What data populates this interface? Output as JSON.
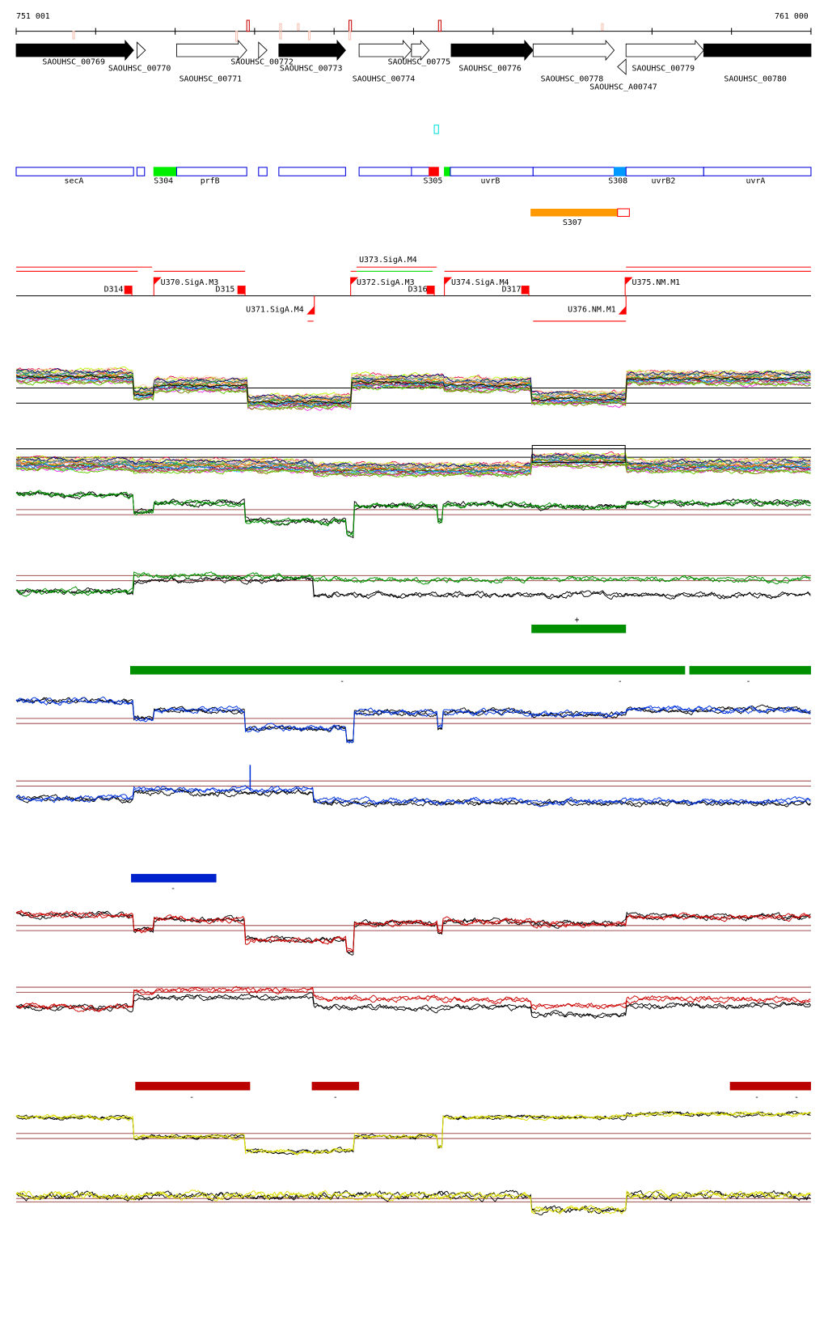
{
  "axis": {
    "start_label": "751 001",
    "end_label": "761 000"
  },
  "genes": [
    {
      "label": "SAOUHSC_00769",
      "strand": "+",
      "fill": "#000000"
    },
    {
      "label": "SAOUHSC_00770",
      "strand": "+",
      "fill": "#ffffff"
    },
    {
      "label": "SAOUHSC_00771",
      "strand": "+",
      "fill": "#ffffff"
    },
    {
      "label": "SAOUHSC_00772",
      "strand": "+",
      "fill": "#ffffff"
    },
    {
      "label": "SAOUHSC_00773",
      "strand": "+",
      "fill": "#000000"
    },
    {
      "label": "SAOUHSC_00774",
      "strand": "+",
      "fill": "#ffffff"
    },
    {
      "label": "SAOUHSC_00775",
      "strand": "+",
      "fill": "#ffffff"
    },
    {
      "label": "SAOUHSC_00776",
      "strand": "+",
      "fill": "#000000"
    },
    {
      "label": "SAOUHSC_00778",
      "strand": "+",
      "fill": "#ffffff"
    },
    {
      "label": "SAOUHSC_A00747",
      "strand": "-",
      "fill": "#ffffff"
    },
    {
      "label": "SAOUHSC_00779",
      "strand": "+",
      "fill": "#ffffff"
    },
    {
      "label": "SAOUHSC_00780",
      "strand": "+",
      "fill": "#000000"
    }
  ],
  "annotations": [
    {
      "label": "secA",
      "color": "#ffffff"
    },
    {
      "label": "",
      "color": "#ffffff"
    },
    {
      "label": "S304",
      "color": "#00ee00"
    },
    {
      "label": "prfB",
      "color": "#ffffff"
    },
    {
      "label": "",
      "color": "#ffffff"
    },
    {
      "label": "",
      "color": "#ffffff"
    },
    {
      "label": "",
      "color": "#ffffff"
    },
    {
      "label": "S305",
      "color": "#ff0000"
    },
    {
      "label": "",
      "color": "#00ee00"
    },
    {
      "label": "uvrB",
      "color": "#ffffff"
    },
    {
      "label": "",
      "color": "#ffffff"
    },
    {
      "label": "S308",
      "color": "#0099ff"
    },
    {
      "label": "uvrB2",
      "color": "#ffffff"
    },
    {
      "label": "uvrA",
      "color": "#ffffff"
    }
  ],
  "segment_s307": {
    "label": "S307",
    "color": "#ff9900"
  },
  "promoters": [
    {
      "label": "D314"
    },
    {
      "label": "U370.SigA.M3"
    },
    {
      "label": "D315"
    },
    {
      "label": "U371.SigA.M4"
    },
    {
      "label": "U372.SigA.M3"
    },
    {
      "label": "U373.SigA.M4"
    },
    {
      "label": "D316"
    },
    {
      "label": "U374.SigA.M4"
    },
    {
      "label": "D317"
    },
    {
      "label": "U375.NM.M1"
    },
    {
      "label": "U376.NM.M1"
    }
  ],
  "condition_bars": [
    {
      "color": "#008f00",
      "strand": "+"
    },
    {
      "color": "#008f00",
      "strand": "-"
    },
    {
      "color": "#008f00",
      "strand": "-"
    },
    {
      "color": "#008f00",
      "strand": "-"
    },
    {
      "color": "#0022cc",
      "strand": "-"
    },
    {
      "color": "#bb0000",
      "strand": "-"
    },
    {
      "color": "#bb0000",
      "strand": "-"
    },
    {
      "color": "#bb0000",
      "strand": "-"
    },
    {
      "color": "#bb0000",
      "strand": "-"
    }
  ],
  "colors": {
    "green": "#008f00",
    "blue": "#0033dd",
    "red": "#cc0000",
    "yellow": "#dddd00",
    "threshold": "#a05050",
    "feature_outline": "#0000dd"
  }
}
